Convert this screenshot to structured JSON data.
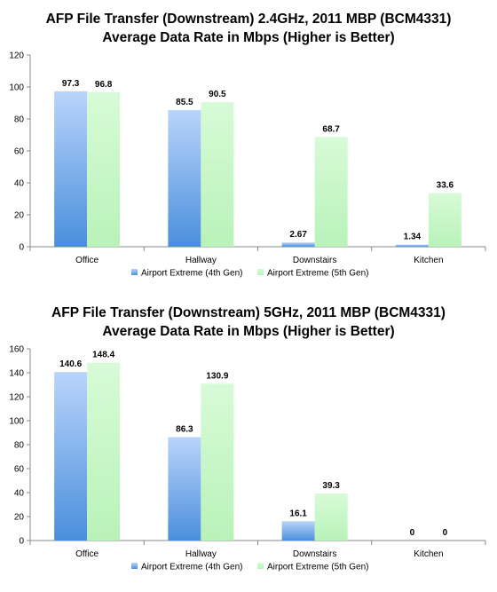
{
  "colors": {
    "series1_top": "#b9d4fb",
    "series1_bottom": "#4a8fdc",
    "series2_top": "#d7fbd7",
    "series2_bottom": "#b9f2b9"
  },
  "chart_data": [
    {
      "type": "bar",
      "title": "AFP File Transfer (Downstream) 2.4GHz, 2011 MBP (BCM4331)",
      "subtitle": "Average Data Rate in Mbps (Higher is Better)",
      "xlabel": "",
      "ylabel": "",
      "categories": [
        "Office",
        "Hallway",
        "Downstairs",
        "Kitchen"
      ],
      "ylim": [
        0,
        120
      ],
      "yticks": [
        0,
        20,
        40,
        60,
        80,
        100,
        120
      ],
      "series": [
        {
          "name": "Airport Extreme (4th Gen)",
          "values": [
            97.3,
            85.5,
            2.67,
            1.34
          ],
          "labels": [
            "97.3",
            "85.5",
            "2.67",
            "1.34"
          ]
        },
        {
          "name": "Airport Extreme (5th Gen)",
          "values": [
            96.8,
            90.5,
            68.7,
            33.6
          ],
          "labels": [
            "96.8",
            "90.5",
            "68.7",
            "33.6"
          ]
        }
      ],
      "legend": "bottom",
      "grid": false
    },
    {
      "type": "bar",
      "title": "AFP File Transfer (Downstream) 5GHz, 2011 MBP (BCM4331)",
      "subtitle": "Average Data Rate in Mbps (Higher is Better)",
      "xlabel": "",
      "ylabel": "",
      "categories": [
        "Office",
        "Hallway",
        "Downstairs",
        "Kitchen"
      ],
      "ylim": [
        0,
        160
      ],
      "yticks": [
        0,
        20,
        40,
        60,
        80,
        100,
        120,
        140,
        160
      ],
      "series": [
        {
          "name": "Airport Extreme (4th Gen)",
          "values": [
            140.6,
            86.3,
            16.1,
            0
          ],
          "labels": [
            "140.6",
            "86.3",
            "16.1",
            "0"
          ]
        },
        {
          "name": "Airport Extreme (5th Gen)",
          "values": [
            148.4,
            130.9,
            39.3,
            0
          ],
          "labels": [
            "148.4",
            "130.9",
            "39.3",
            "0"
          ]
        }
      ],
      "legend": "bottom",
      "grid": false
    }
  ]
}
